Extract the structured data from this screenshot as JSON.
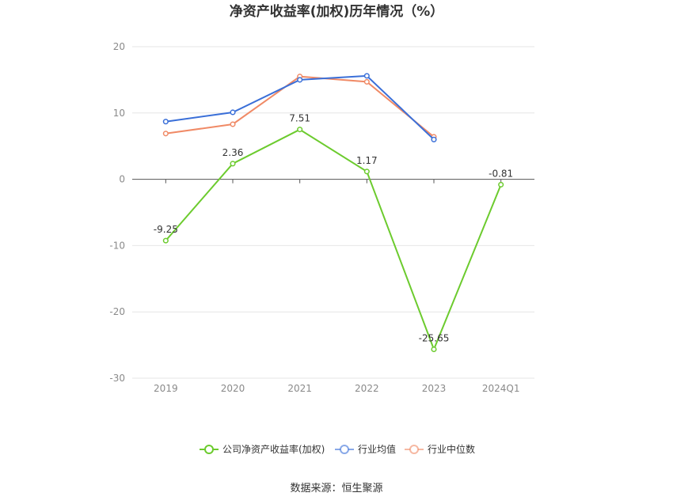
{
  "title": "净资产收益率(加权)历年情况（%）",
  "source": "数据来源：恒生聚源",
  "chart_data": {
    "type": "line",
    "categories": [
      "2019",
      "2020",
      "2021",
      "2022",
      "2023",
      "2024Q1"
    ],
    "ylim": [
      -30,
      20
    ],
    "yticks": [
      20,
      10,
      0,
      -10,
      -20,
      -30
    ],
    "grid": true,
    "legend_position": "bottom-center",
    "series": [
      {
        "name": "公司净资产收益率(加权)",
        "color": "#6ccb2e",
        "values": [
          -9.25,
          2.36,
          7.51,
          1.17,
          -25.65,
          -0.81
        ],
        "labels": [
          "-9.25",
          "2.36",
          "7.51",
          "1.17",
          "-25.65",
          "-0.81"
        ]
      },
      {
        "name": "行业均值",
        "color": "#3a6fd8",
        "values": [
          8.7,
          10.1,
          15.0,
          15.6,
          6.0,
          null
        ]
      },
      {
        "name": "行业中位数",
        "color": "#f08a66",
        "values": [
          6.9,
          8.3,
          15.5,
          14.7,
          6.4,
          null
        ]
      }
    ]
  }
}
